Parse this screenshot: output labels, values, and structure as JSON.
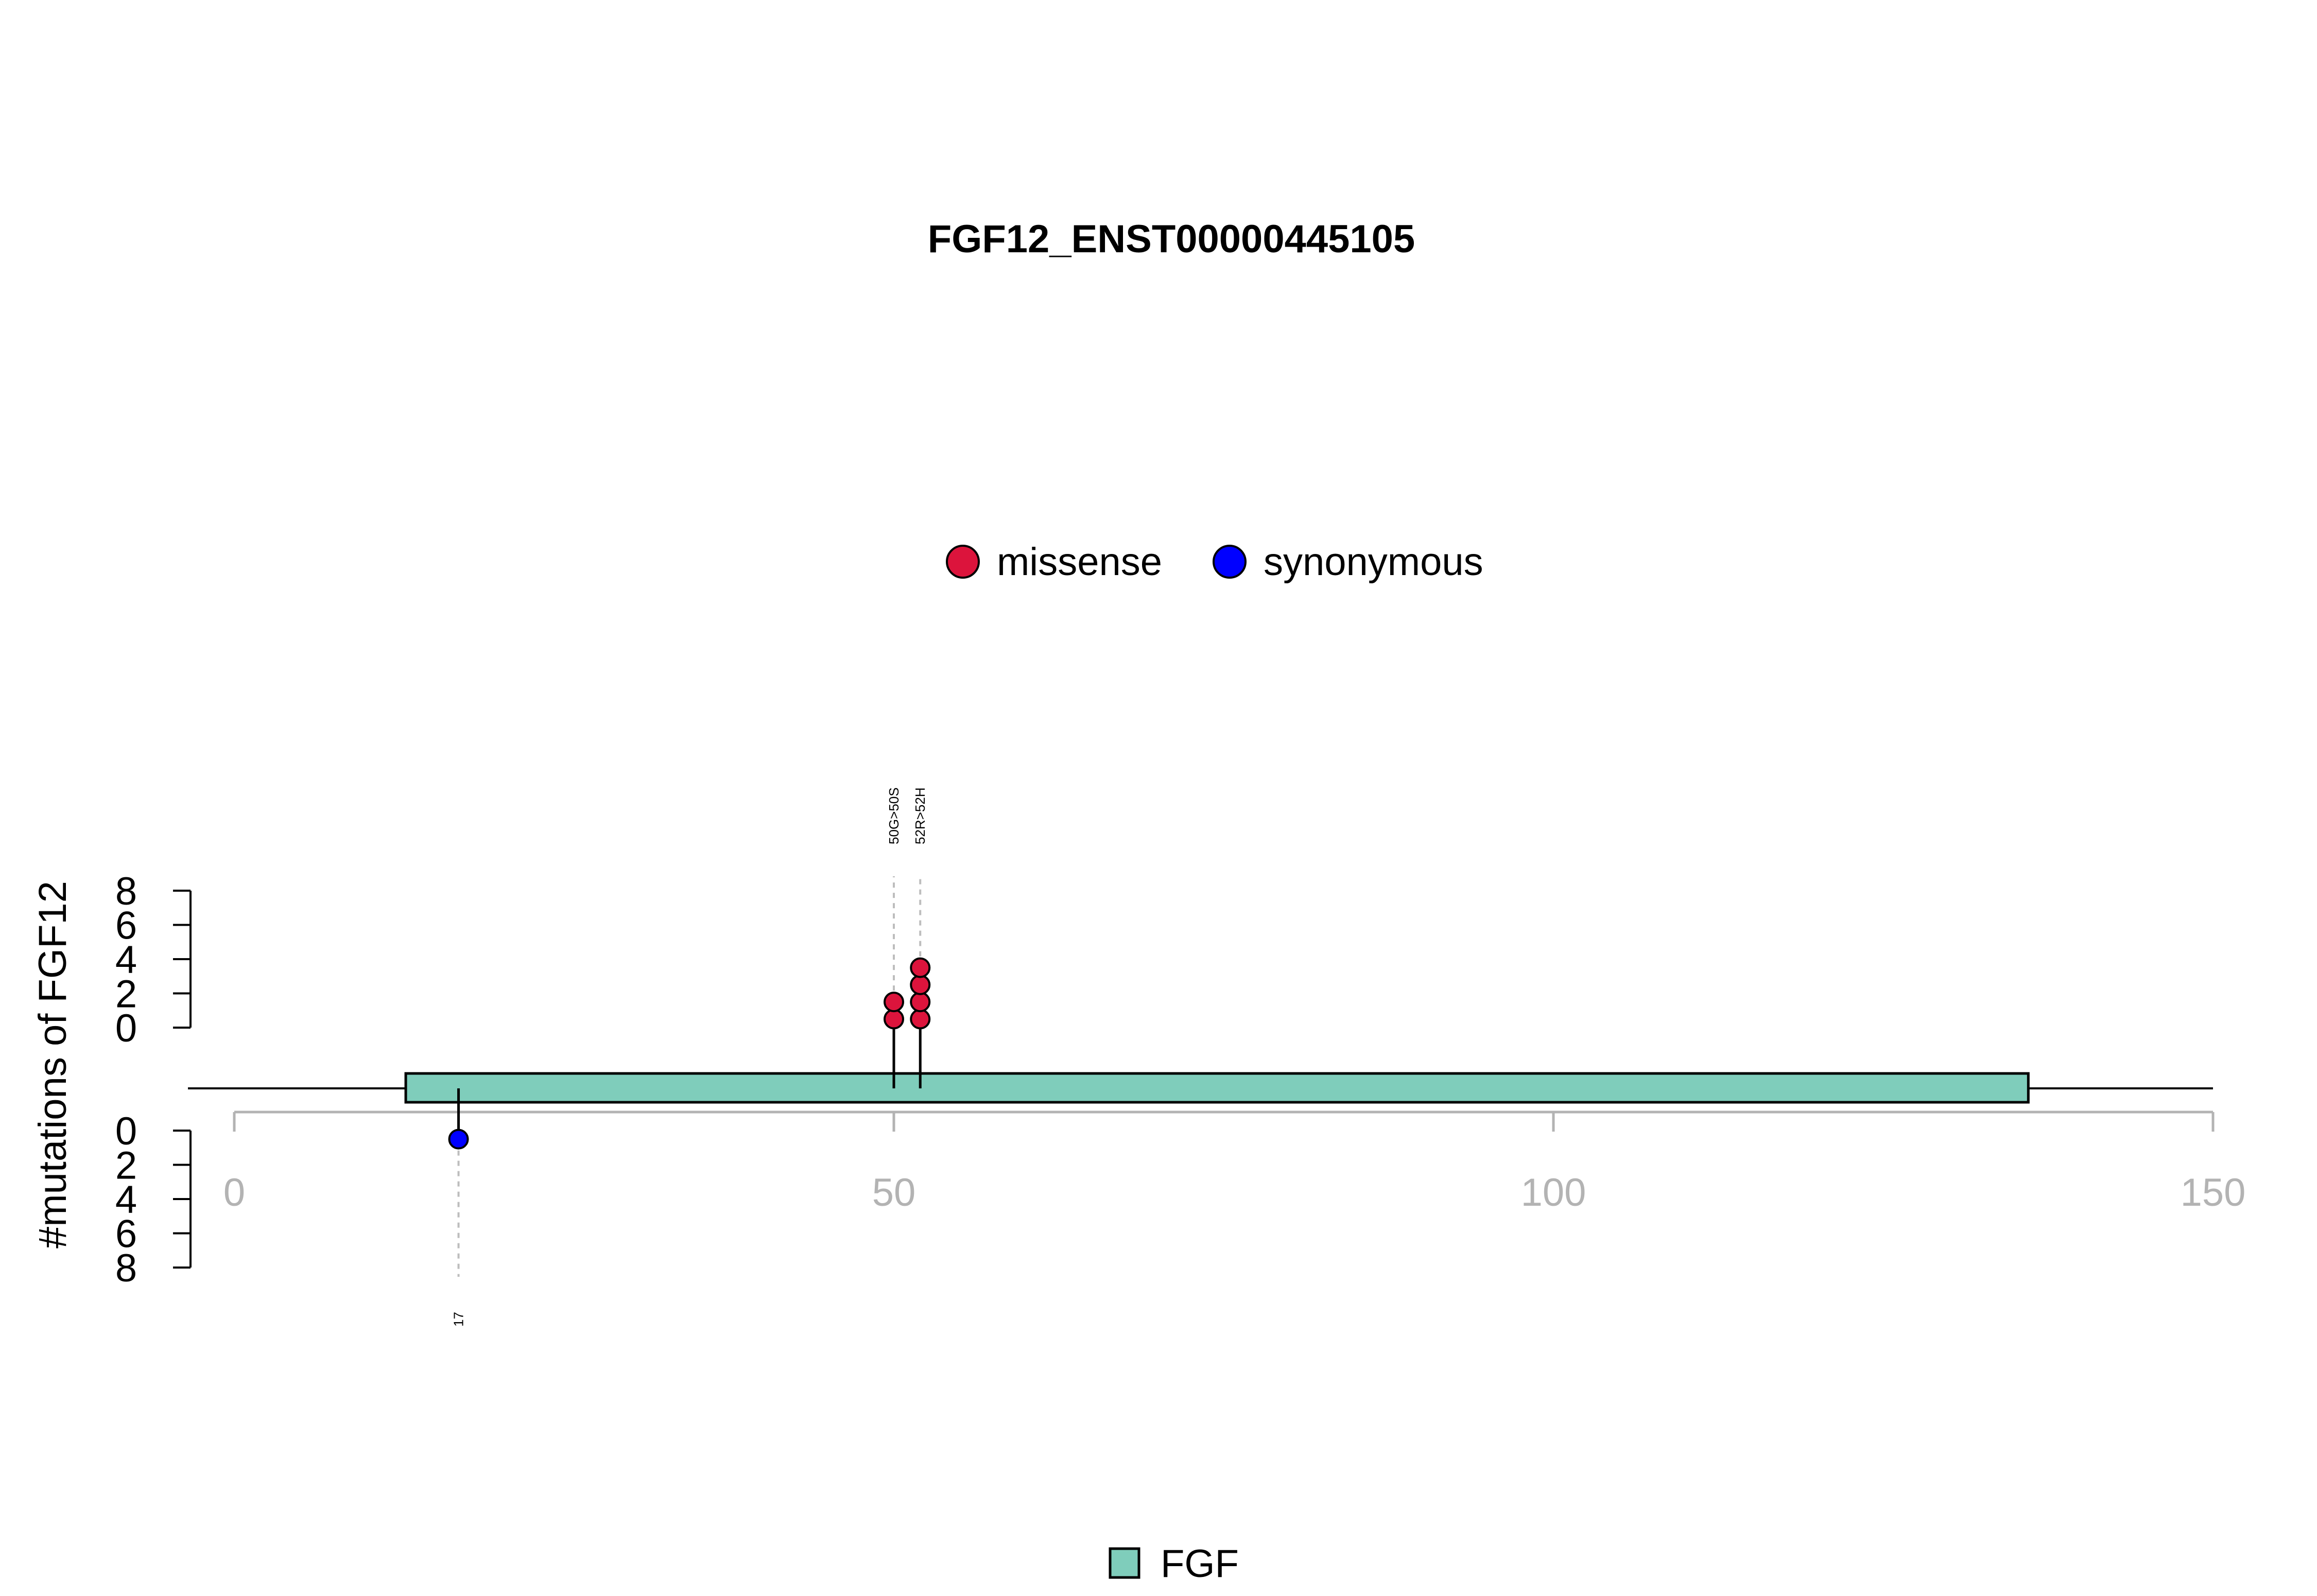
{
  "chart_data": {
    "type": "lollipop",
    "title": "FGF12_ENST00000445105",
    "ylabel": "#mutations of FGF12",
    "x_axis": {
      "ticks": [
        0,
        50,
        100,
        150
      ],
      "range": [
        0,
        150
      ]
    },
    "y_axis_upper": {
      "ticks": [
        0,
        2,
        4,
        6,
        8
      ],
      "range": [
        0,
        8
      ]
    },
    "y_axis_lower": {
      "ticks": [
        0,
        2,
        4,
        6,
        8
      ],
      "range": [
        0,
        8
      ]
    },
    "legend": [
      {
        "label": "missense",
        "color": "#DC143C"
      },
      {
        "label": "synonymous",
        "color": "#0000FF"
      }
    ],
    "domains": [
      {
        "name": "FGF",
        "start": 13,
        "end": 136,
        "color": "#7FCDBB"
      }
    ],
    "domain_legend": [
      {
        "label": "FGF",
        "color": "#7FCDBB"
      }
    ],
    "mutations": [
      {
        "position": 50,
        "count": 2,
        "type": "missense",
        "side": "up",
        "label": "50G>50S"
      },
      {
        "position": 52,
        "count": 4,
        "type": "missense",
        "side": "up",
        "label": "52R>52H"
      },
      {
        "position": 17,
        "count": 1,
        "type": "synonymous",
        "side": "down",
        "label": "17"
      }
    ]
  }
}
